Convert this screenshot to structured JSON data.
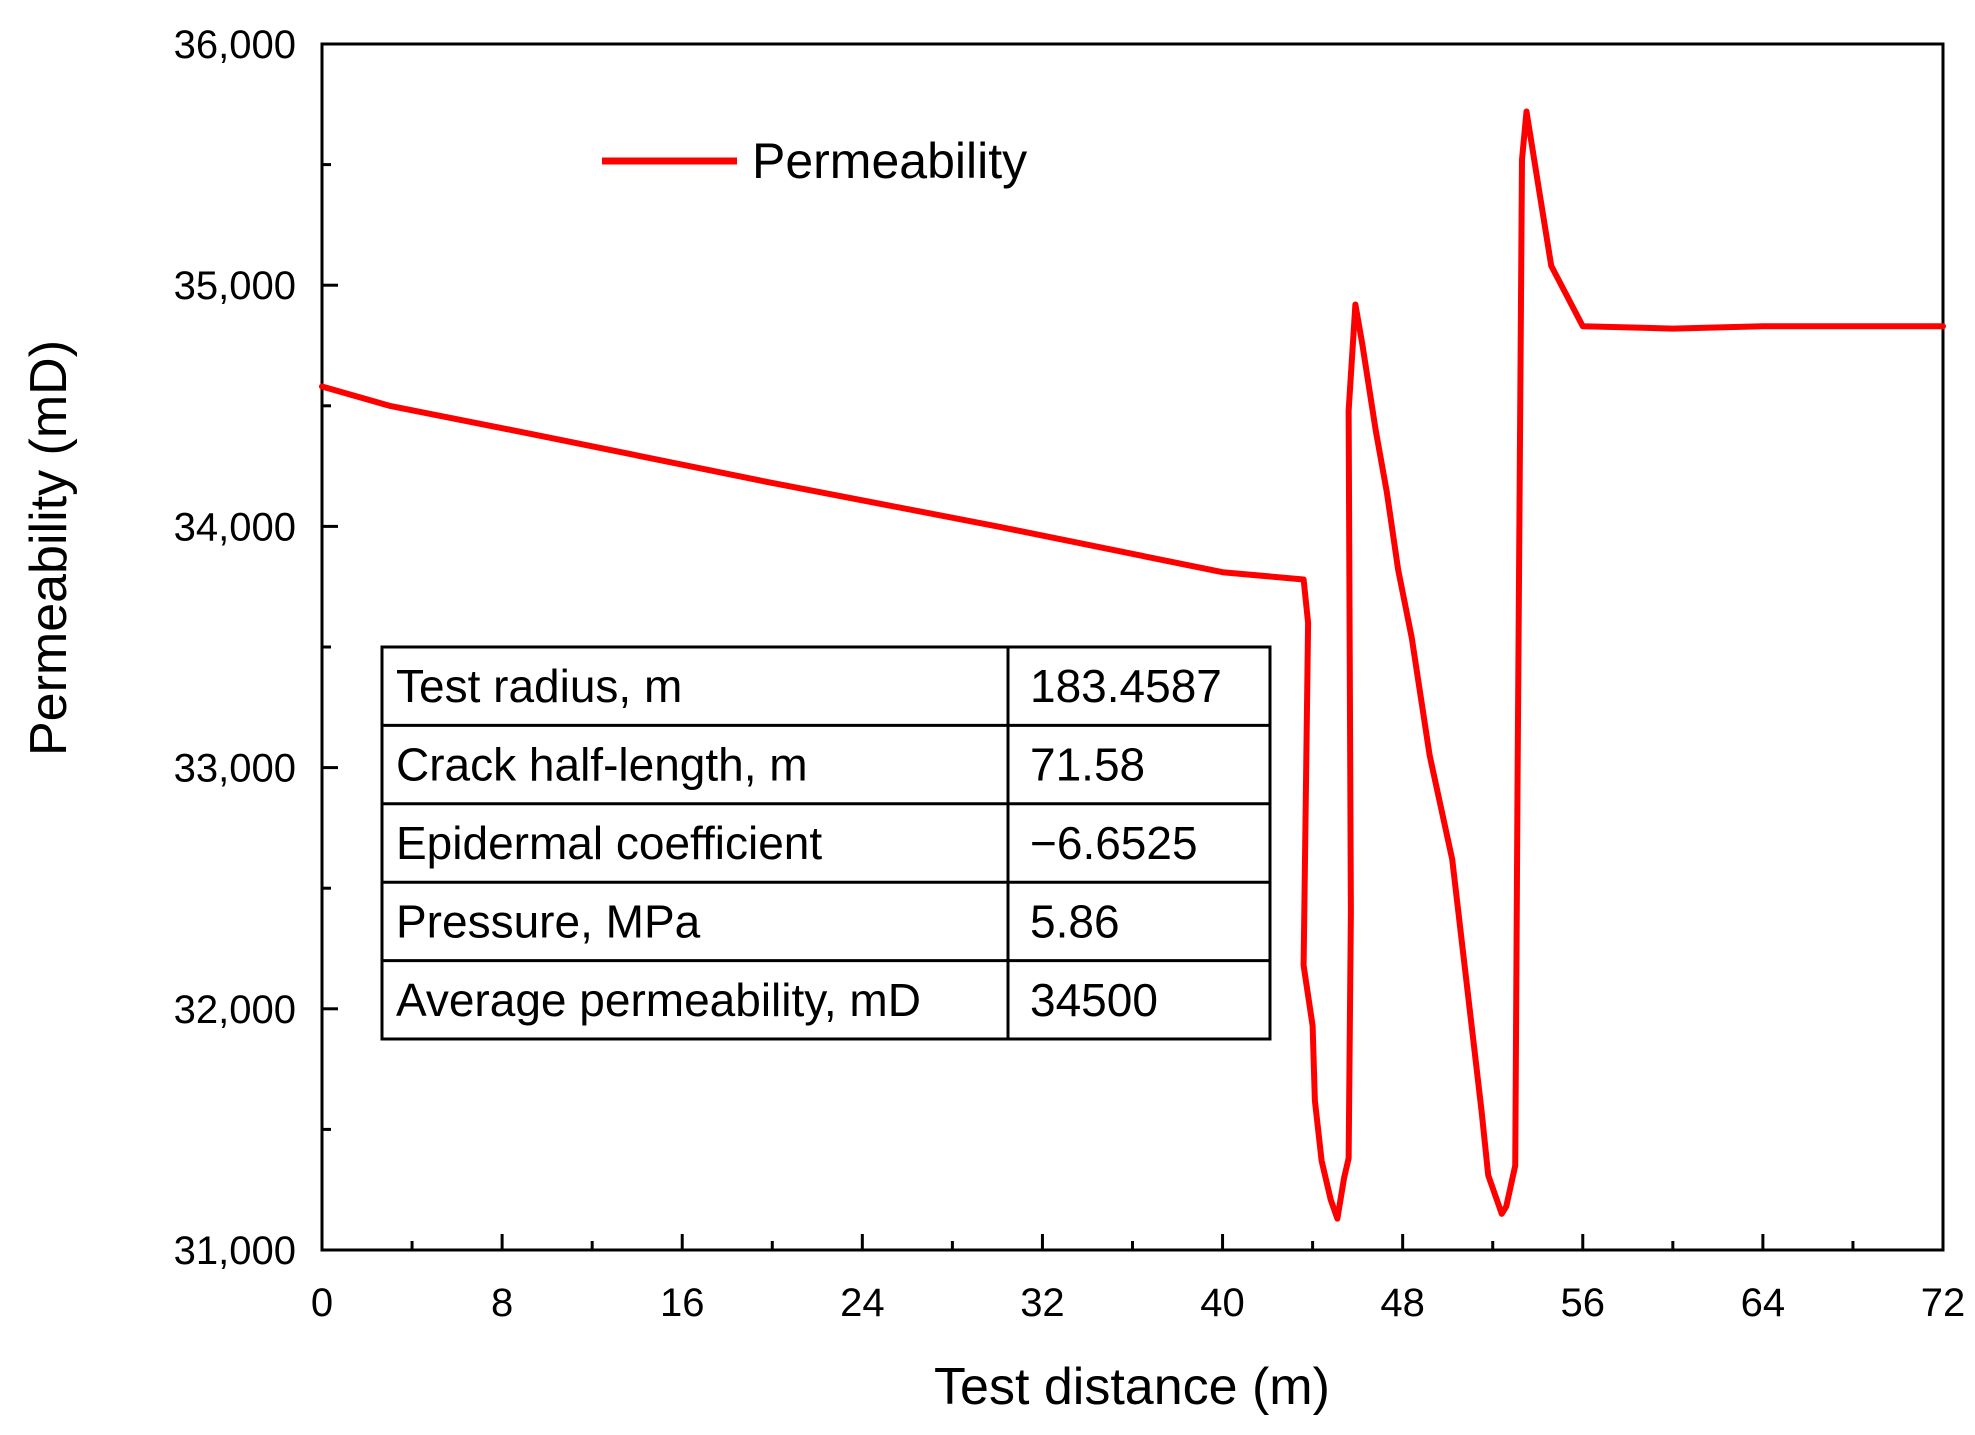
{
  "chart_data": {
    "type": "line",
    "title": "",
    "xlabel": "Test distance (m)",
    "ylabel": "Permeability (mD)",
    "xlim": [
      0,
      72
    ],
    "ylim": [
      31000,
      36000
    ],
    "xticks": [
      0,
      8,
      16,
      24,
      32,
      40,
      48,
      56,
      64,
      72
    ],
    "xtick_labels": [
      "0",
      "8",
      "16",
      "24",
      "32",
      "40",
      "48",
      "56",
      "64",
      "72"
    ],
    "yticks": [
      31000,
      32000,
      33000,
      34000,
      35000,
      36000
    ],
    "ytick_labels": [
      "31,000",
      "32,000",
      "33,000",
      "34,000",
      "35,000",
      "36,000"
    ],
    "legend_position": "top-left",
    "series": [
      {
        "name": "Permeability",
        "color": "#ff0000",
        "x": [
          0,
          3,
          10,
          20,
          30,
          40,
          43.6,
          43.8,
          43.6,
          44.0,
          44.1,
          44.4,
          44.8,
          45.1,
          45.4,
          45.6,
          45.7,
          45.6,
          45.9,
          46.2,
          46.8,
          47.3,
          47.8,
          48.4,
          49.2,
          50.2,
          51.5,
          51.8,
          52.4,
          52.6,
          53.0,
          53.1,
          53.3,
          53.5,
          54.1,
          54.6,
          56,
          60,
          64,
          68,
          72
        ],
        "values": [
          34580,
          34500,
          34370,
          34180,
          34000,
          33810,
          33780,
          33600,
          32180,
          31930,
          31620,
          31370,
          31210,
          31130,
          31300,
          31380,
          32400,
          34480,
          34920,
          34760,
          34400,
          34140,
          33820,
          33540,
          33050,
          32620,
          31580,
          31310,
          31150,
          31180,
          31350,
          32900,
          35520,
          35720,
          35370,
          35080,
          34830,
          34820,
          34830,
          34830,
          34830
        ]
      }
    ],
    "info_table": {
      "rows": [
        {
          "label": "Test radius, m",
          "value": "183.4587"
        },
        {
          "label": "Crack half-length, m",
          "value": "71.58"
        },
        {
          "label": "Epidermal coefficient",
          "value": "−6.6525"
        },
        {
          "label": "Pressure, MPa",
          "value": "5.86"
        },
        {
          "label": "Average permeability, mD",
          "value": "34500"
        }
      ]
    }
  }
}
